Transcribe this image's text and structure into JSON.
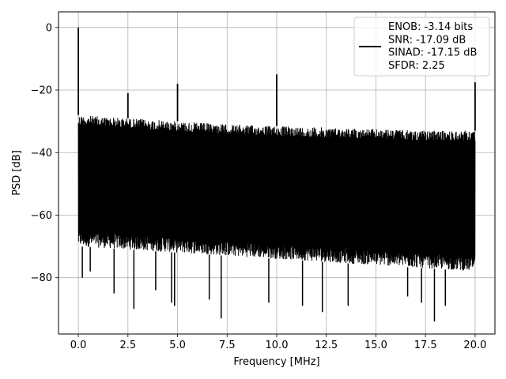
{
  "chart_data": {
    "type": "line",
    "xlabel": "Frequency [MHz]",
    "ylabel": "PSD [dB]",
    "xlim": [
      -1.0,
      21.0
    ],
    "ylim": [
      -98,
      5
    ],
    "xticks": [
      0.0,
      2.5,
      5.0,
      7.5,
      10.0,
      12.5,
      15.0,
      17.5,
      20.0
    ],
    "xtick_labels": [
      "0.0",
      "2.5",
      "5.0",
      "7.5",
      "10.0",
      "12.5",
      "15.0",
      "17.5",
      "20.0"
    ],
    "yticks": [
      0,
      -20,
      -40,
      -60,
      -80
    ],
    "ytick_labels": [
      "0",
      "−20",
      "−40",
      "−60",
      "−80"
    ],
    "grid": true,
    "legend_position": "top-right",
    "series": [
      {
        "name": "ENOB: -3.14 bits\nSNR: -17.09 dB\nSINAD: -17.15 dB\nSFDR: 2.25",
        "color": "#000000",
        "noise_floor": {
          "x_range": [
            0.0,
            20.0
          ],
          "upper_envelope": [
            [
              0.0,
              -28
            ],
            [
              2.5,
              -29
            ],
            [
              5.0,
              -30
            ],
            [
              7.5,
              -31
            ],
            [
              10.0,
              -31.5
            ],
            [
              12.5,
              -32
            ],
            [
              15.0,
              -32.5
            ],
            [
              17.5,
              -33
            ],
            [
              20.0,
              -33
            ]
          ],
          "lower_envelope": [
            [
              0.0,
              -70
            ],
            [
              5.0,
              -72
            ],
            [
              10.0,
              -74
            ],
            [
              15.0,
              -76
            ],
            [
              20.0,
              -78
            ]
          ]
        },
        "peaks": [
          {
            "x": 0.0,
            "y": 0.0
          },
          {
            "x": 2.5,
            "y": -21
          },
          {
            "x": 5.0,
            "y": -18
          },
          {
            "x": 10.0,
            "y": -15
          },
          {
            "x": 20.0,
            "y": -17.5
          }
        ],
        "deep_nulls": [
          {
            "x": 0.2,
            "y": -80
          },
          {
            "x": 0.6,
            "y": -78
          },
          {
            "x": 1.8,
            "y": -85
          },
          {
            "x": 2.8,
            "y": -90
          },
          {
            "x": 3.9,
            "y": -84
          },
          {
            "x": 4.7,
            "y": -88
          },
          {
            "x": 4.85,
            "y": -89
          },
          {
            "x": 6.6,
            "y": -87
          },
          {
            "x": 7.2,
            "y": -93
          },
          {
            "x": 9.6,
            "y": -88
          },
          {
            "x": 11.3,
            "y": -89
          },
          {
            "x": 12.3,
            "y": -91
          },
          {
            "x": 13.6,
            "y": -89
          },
          {
            "x": 16.6,
            "y": -86
          },
          {
            "x": 17.3,
            "y": -88
          },
          {
            "x": 17.95,
            "y": -94
          },
          {
            "x": 18.5,
            "y": -89
          }
        ]
      }
    ]
  }
}
